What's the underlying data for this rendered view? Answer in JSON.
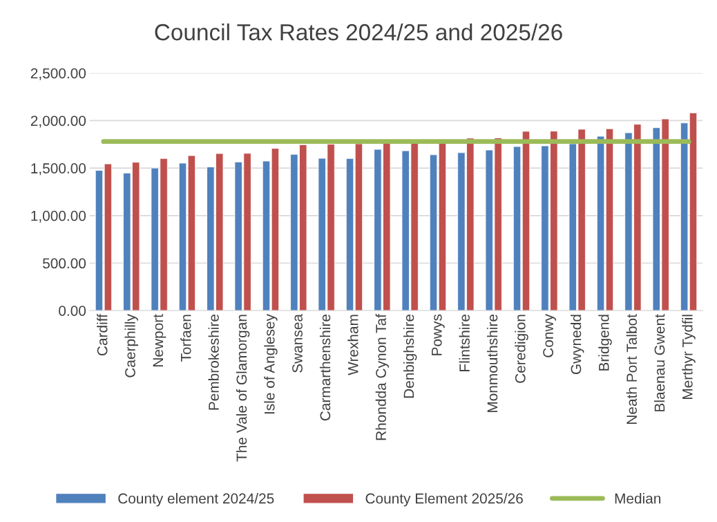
{
  "chart_data": {
    "type": "bar",
    "title": "Council Tax Rates 2024/25 and 2025/26",
    "categories": [
      "Cardiff",
      "Caerphilly",
      "Newport",
      "Torfaen",
      "Pembrokeshire",
      "The Vale of Glamorgan",
      "Isle of Anglesey",
      "Swansea",
      "Carmarthenshire",
      "Wrexham",
      "Rhondda Cynon Taf",
      "Denbighshire",
      "Powys",
      "Flintshire",
      "Monmouthshire",
      "Ceredigion",
      "Conwy",
      "Gwynedd",
      "Bridgend",
      "Neath Port Talbot",
      "Blaenau Gwent",
      "Merthyr Tydfil"
    ],
    "series": [
      {
        "name": "County element 2024/25",
        "color": "#4f81bd",
        "values": [
          1476,
          1448,
          1500,
          1552,
          1512,
          1564,
          1574,
          1645,
          1603,
          1601,
          1697,
          1682,
          1640,
          1662,
          1690,
          1727,
          1734,
          1756,
          1835,
          1872,
          1925,
          1975
        ]
      },
      {
        "name": "County Element 2025/26",
        "color": "#c0504d",
        "values": [
          1544,
          1561,
          1601,
          1631,
          1653,
          1655,
          1707,
          1746,
          1751,
          1756,
          1764,
          1770,
          1768,
          1815,
          1817,
          1887,
          1889,
          1909,
          1914,
          1961,
          2017,
          2081
        ]
      },
      {
        "name": "Median",
        "type": "line",
        "color": "#9bbb59",
        "values": [
          1780,
          1780,
          1780,
          1780,
          1780,
          1780,
          1780,
          1780,
          1780,
          1780,
          1780,
          1780,
          1780,
          1780,
          1780,
          1780,
          1780,
          1780,
          1780,
          1780,
          1780,
          1780
        ]
      }
    ],
    "ylim": [
      0,
      2500
    ],
    "yticks": [
      {
        "value": 0,
        "label": "0.00"
      },
      {
        "value": 500,
        "label": "500.00"
      },
      {
        "value": 1000,
        "label": "1,000.00"
      },
      {
        "value": 1500,
        "label": "1,500.00"
      },
      {
        "value": 2000,
        "label": "2,000.00"
      },
      {
        "value": 2500,
        "label": "2,500.00"
      }
    ],
    "grid": "y",
    "legend": "bottom"
  }
}
